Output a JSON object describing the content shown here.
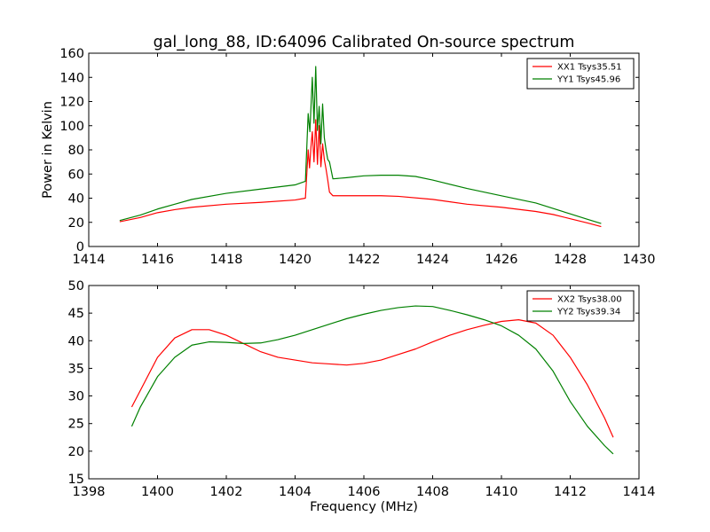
{
  "figure": {
    "title": "gal_long_88, ID:64096 Calibrated On-source spectrum"
  },
  "chart_data": [
    {
      "type": "line",
      "title": "gal_long_88, ID:64096 Calibrated On-source spectrum",
      "xlabel": "",
      "ylabel": "Power in Kelvin",
      "xlim": [
        1414,
        1430
      ],
      "ylim": [
        0,
        160
      ],
      "xticks": [
        1414,
        1416,
        1418,
        1420,
        1422,
        1424,
        1426,
        1428,
        1430
      ],
      "yticks": [
        0,
        20,
        40,
        60,
        80,
        100,
        120,
        140,
        160
      ],
      "grid": false,
      "legend_position": "top-right",
      "series": [
        {
          "name": "XX1 Tsys35.51",
          "color": "#ff0000",
          "x": [
            1414.9,
            1415.5,
            1416,
            1416.5,
            1417,
            1418,
            1419,
            1420,
            1420.3,
            1420.38,
            1420.42,
            1420.46,
            1420.5,
            1420.55,
            1420.6,
            1420.65,
            1420.7,
            1420.75,
            1420.8,
            1420.85,
            1420.9,
            1420.95,
            1421.0,
            1421.1,
            1421.5,
            1422,
            1422.5,
            1423,
            1424,
            1425,
            1426,
            1427,
            1427.5,
            1428,
            1428.5,
            1428.9
          ],
          "y": [
            20.5,
            24,
            28,
            30.5,
            32.5,
            35,
            36.5,
            38.5,
            40,
            80,
            65,
            82,
            95,
            70,
            105,
            68,
            100,
            66,
            85,
            72,
            64,
            55,
            45,
            42,
            42,
            42,
            42,
            41.5,
            39,
            35,
            32.5,
            29,
            26.5,
            23,
            19.5,
            16.5
          ]
        },
        {
          "name": "YY1 Tsys45.96",
          "color": "#008000",
          "x": [
            1414.9,
            1415.5,
            1416,
            1416.5,
            1417,
            1418,
            1419,
            1420,
            1420.3,
            1420.38,
            1420.43,
            1420.5,
            1420.55,
            1420.6,
            1420.65,
            1420.7,
            1420.75,
            1420.8,
            1420.85,
            1420.9,
            1420.95,
            1421.0,
            1421.1,
            1421.5,
            1422,
            1422.5,
            1423,
            1423.5,
            1424,
            1425,
            1426,
            1427,
            1428,
            1428.5,
            1428.9
          ],
          "y": [
            21.5,
            26,
            31,
            35,
            39,
            44,
            47.5,
            51,
            54,
            110,
            95,
            140,
            102,
            149,
            96,
            116,
            85,
            118,
            90,
            80,
            72,
            70,
            56,
            57,
            58.5,
            59,
            59,
            58,
            55,
            48,
            42,
            36,
            27,
            22.5,
            19
          ]
        }
      ]
    },
    {
      "type": "line",
      "title": "",
      "xlabel": "Frequency (MHz)",
      "ylabel": "",
      "xlim": [
        1398,
        1414
      ],
      "ylim": [
        15,
        50
      ],
      "xticks": [
        1398,
        1400,
        1402,
        1404,
        1406,
        1408,
        1410,
        1412,
        1414
      ],
      "yticks": [
        15,
        20,
        25,
        30,
        35,
        40,
        45,
        50
      ],
      "grid": false,
      "legend_position": "top-right",
      "series": [
        {
          "name": "XX2 Tsys38.00",
          "color": "#ff0000",
          "x": [
            1399.25,
            1399.5,
            1400,
            1400.5,
            1401,
            1401.5,
            1402,
            1402.5,
            1403,
            1403.5,
            1404,
            1404.5,
            1405,
            1405.5,
            1406,
            1406.5,
            1407,
            1407.5,
            1408,
            1408.5,
            1409,
            1409.5,
            1410,
            1410.5,
            1411,
            1411.5,
            1412,
            1412.5,
            1413,
            1413.25
          ],
          "y": [
            28,
            31,
            37,
            40.5,
            42,
            42,
            41,
            39.5,
            38,
            37,
            36.5,
            36,
            35.8,
            35.6,
            35.9,
            36.5,
            37.5,
            38.5,
            39.8,
            41,
            42,
            42.8,
            43.5,
            43.8,
            43.2,
            41,
            37,
            32,
            26,
            22.5
          ]
        },
        {
          "name": "YY2 Tsys39.34",
          "color": "#008000",
          "x": [
            1399.25,
            1399.5,
            1400,
            1400.5,
            1401,
            1401.5,
            1402,
            1402.5,
            1403,
            1403.5,
            1404,
            1404.5,
            1405,
            1405.5,
            1406,
            1406.5,
            1407,
            1407.5,
            1408,
            1408.5,
            1409,
            1409.5,
            1410,
            1410.5,
            1411,
            1411.5,
            1412,
            1412.5,
            1413,
            1413.25
          ],
          "y": [
            24.5,
            28,
            33.5,
            37,
            39.2,
            39.8,
            39.7,
            39.5,
            39.6,
            40.2,
            41,
            42,
            43,
            44,
            44.8,
            45.5,
            46,
            46.3,
            46.2,
            45.5,
            44.7,
            43.8,
            42.7,
            41,
            38.5,
            34.5,
            29,
            24.5,
            21,
            19.5
          ]
        }
      ]
    }
  ]
}
